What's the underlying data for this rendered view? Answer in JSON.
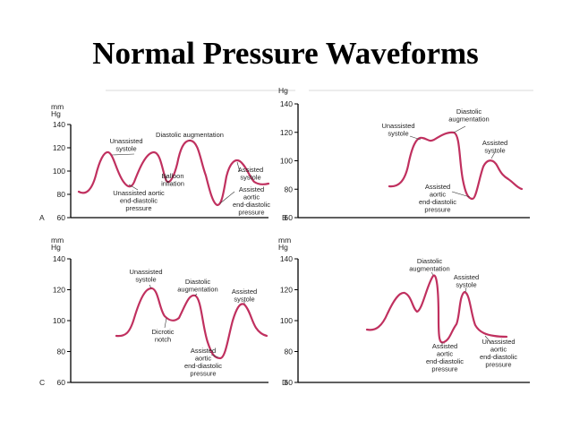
{
  "title": "Normal Pressure Waveforms",
  "colors": {
    "waveform": "#c0305f",
    "axis": "#000000",
    "background": "#ffffff"
  },
  "panels": [
    {
      "id": "A",
      "unit": [
        "mm",
        "Hg"
      ],
      "ticks": [
        "140",
        "120",
        "100",
        "80",
        "60"
      ],
      "annotations": [
        [
          "Unassisted",
          "systole"
        ],
        [
          "Diastolic augmentation"
        ],
        [
          "Balloon",
          "inflation"
        ],
        [
          "Unassisted aortic",
          "end-diastolic",
          "pressure"
        ],
        [
          "Assisted",
          "systole"
        ],
        [
          "Assisted",
          "aortic",
          "end-diastolic",
          "pressure"
        ]
      ]
    },
    {
      "id": "B",
      "unit": [
        "Hg"
      ],
      "ticks": [
        "140",
        "120",
        "100",
        "80",
        "60"
      ],
      "annotations": [
        [
          "Unassisted",
          "systole"
        ],
        [
          "Diastolic",
          "augmentation"
        ],
        [
          "Assisted",
          "systole"
        ],
        [
          "Assisted",
          "aortic",
          "end-diastolic",
          "pressure"
        ]
      ]
    },
    {
      "id": "C",
      "unit": [
        "mm",
        "Hg"
      ],
      "ticks": [
        "140",
        "120",
        "100",
        "80",
        "60"
      ],
      "annotations": [
        [
          "Unassisted",
          "systole"
        ],
        [
          "Diastolic",
          "augmentation"
        ],
        [
          "Assisted",
          "systole"
        ],
        [
          "Dicrotic",
          "notch"
        ],
        [
          "Assisted",
          "aortic",
          "end-diastolic",
          "pressure"
        ]
      ]
    },
    {
      "id": "D",
      "unit": [
        "mm",
        "Hg"
      ],
      "ticks": [
        "140",
        "120",
        "100",
        "80",
        "60"
      ],
      "annotations": [
        [
          "Diastolic",
          "augmentation"
        ],
        [
          "Assisted",
          "systole"
        ],
        [
          "Assisted",
          "aortic",
          "end-diastolic",
          "pressure"
        ],
        [
          "Unassisted",
          "aortic",
          "end-diastolic",
          "pressure"
        ]
      ]
    }
  ]
}
